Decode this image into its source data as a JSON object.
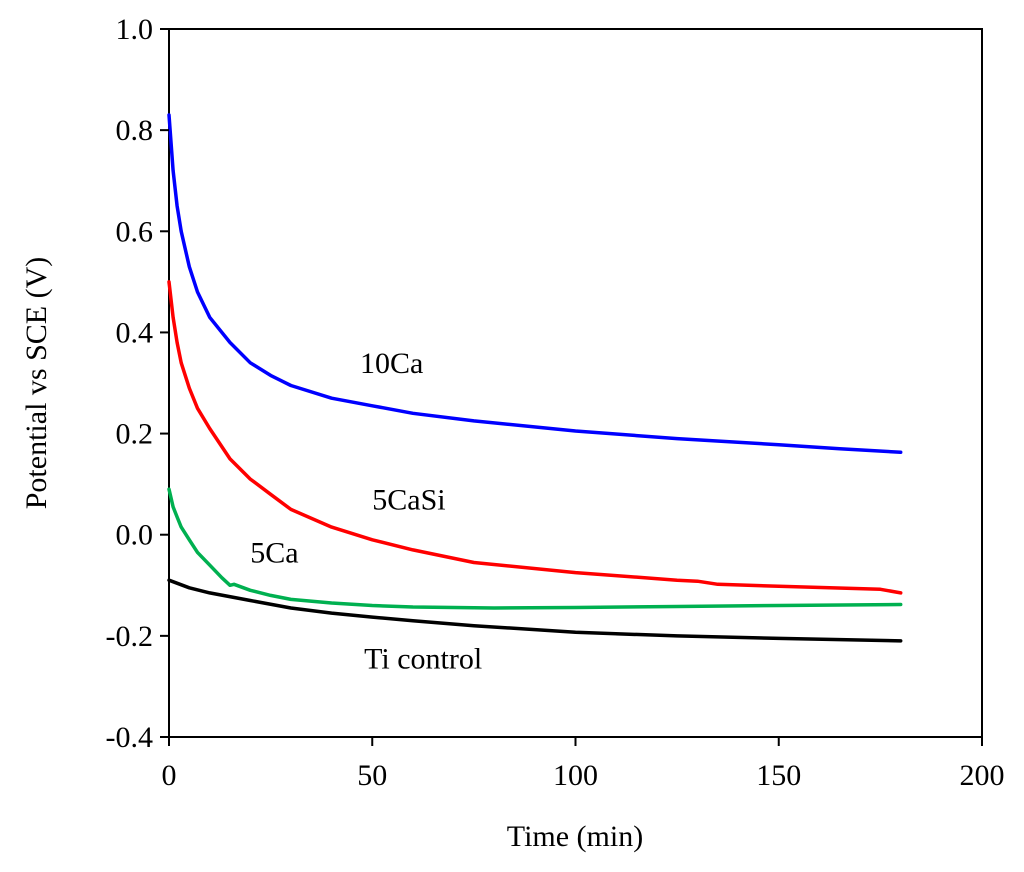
{
  "chart_data": {
    "type": "line",
    "title": "",
    "xlabel": "Time (min)",
    "ylabel": "Potential vs SCE (V)",
    "xlim": [
      0,
      200
    ],
    "ylim": [
      -0.4,
      1.0
    ],
    "xticks": [
      0,
      50,
      100,
      150,
      200
    ],
    "yticks": [
      -0.4,
      -0.2,
      0.0,
      0.2,
      0.4,
      0.6,
      0.8,
      1.0
    ],
    "xtick_labels": [
      "0",
      "50",
      "100",
      "150",
      "200"
    ],
    "ytick_labels": [
      "-0.4",
      "-0.2",
      "0.0",
      "0.2",
      "0.4",
      "0.6",
      "0.8",
      "1.0"
    ],
    "grid": false,
    "series": [
      {
        "name": "10Ca",
        "color": "#0000ff",
        "points": [
          [
            0,
            0.83
          ],
          [
            1,
            0.72
          ],
          [
            2,
            0.65
          ],
          [
            3,
            0.6
          ],
          [
            5,
            0.53
          ],
          [
            7,
            0.48
          ],
          [
            10,
            0.43
          ],
          [
            15,
            0.38
          ],
          [
            20,
            0.34
          ],
          [
            25,
            0.315
          ],
          [
            30,
            0.295
          ],
          [
            40,
            0.27
          ],
          [
            50,
            0.255
          ],
          [
            60,
            0.24
          ],
          [
            75,
            0.225
          ],
          [
            100,
            0.205
          ],
          [
            125,
            0.19
          ],
          [
            150,
            0.178
          ],
          [
            165,
            0.17
          ],
          [
            180,
            0.163
          ]
        ]
      },
      {
        "name": "5CaSi",
        "color": "#ff0000",
        "points": [
          [
            0,
            0.5
          ],
          [
            1,
            0.43
          ],
          [
            2,
            0.38
          ],
          [
            3,
            0.34
          ],
          [
            5,
            0.29
          ],
          [
            7,
            0.25
          ],
          [
            10,
            0.21
          ],
          [
            15,
            0.15
          ],
          [
            20,
            0.11
          ],
          [
            25,
            0.08
          ],
          [
            30,
            0.05
          ],
          [
            40,
            0.015
          ],
          [
            50,
            -0.01
          ],
          [
            60,
            -0.03
          ],
          [
            75,
            -0.055
          ],
          [
            100,
            -0.075
          ],
          [
            125,
            -0.09
          ],
          [
            130,
            -0.092
          ],
          [
            135,
            -0.098
          ],
          [
            150,
            -0.102
          ],
          [
            175,
            -0.108
          ],
          [
            180,
            -0.115
          ]
        ]
      },
      {
        "name": "5Ca",
        "color": "#00b050",
        "points": [
          [
            0,
            0.09
          ],
          [
            1,
            0.055
          ],
          [
            2,
            0.035
          ],
          [
            3,
            0.015
          ],
          [
            5,
            -0.01
          ],
          [
            7,
            -0.035
          ],
          [
            10,
            -0.06
          ],
          [
            13,
            -0.085
          ],
          [
            15,
            -0.1
          ],
          [
            16,
            -0.098
          ],
          [
            20,
            -0.11
          ],
          [
            25,
            -0.12
          ],
          [
            30,
            -0.128
          ],
          [
            40,
            -0.135
          ],
          [
            50,
            -0.14
          ],
          [
            60,
            -0.143
          ],
          [
            80,
            -0.145
          ],
          [
            100,
            -0.144
          ],
          [
            125,
            -0.142
          ],
          [
            150,
            -0.14
          ],
          [
            180,
            -0.138
          ]
        ]
      },
      {
        "name": "Ti control",
        "color": "#000000",
        "points": [
          [
            0,
            -0.09
          ],
          [
            5,
            -0.105
          ],
          [
            10,
            -0.115
          ],
          [
            20,
            -0.13
          ],
          [
            30,
            -0.145
          ],
          [
            40,
            -0.155
          ],
          [
            50,
            -0.163
          ],
          [
            60,
            -0.17
          ],
          [
            75,
            -0.18
          ],
          [
            100,
            -0.193
          ],
          [
            125,
            -0.2
          ],
          [
            150,
            -0.205
          ],
          [
            180,
            -0.21
          ]
        ]
      }
    ],
    "annotations": [
      {
        "text": "10Ca",
        "x": 47,
        "y": 0.32
      },
      {
        "text": "5CaSi",
        "x": 50,
        "y": 0.05
      },
      {
        "text": "5Ca",
        "x": 20,
        "y": -0.055
      },
      {
        "text": "Ti control",
        "x": 48,
        "y": -0.265
      }
    ]
  }
}
